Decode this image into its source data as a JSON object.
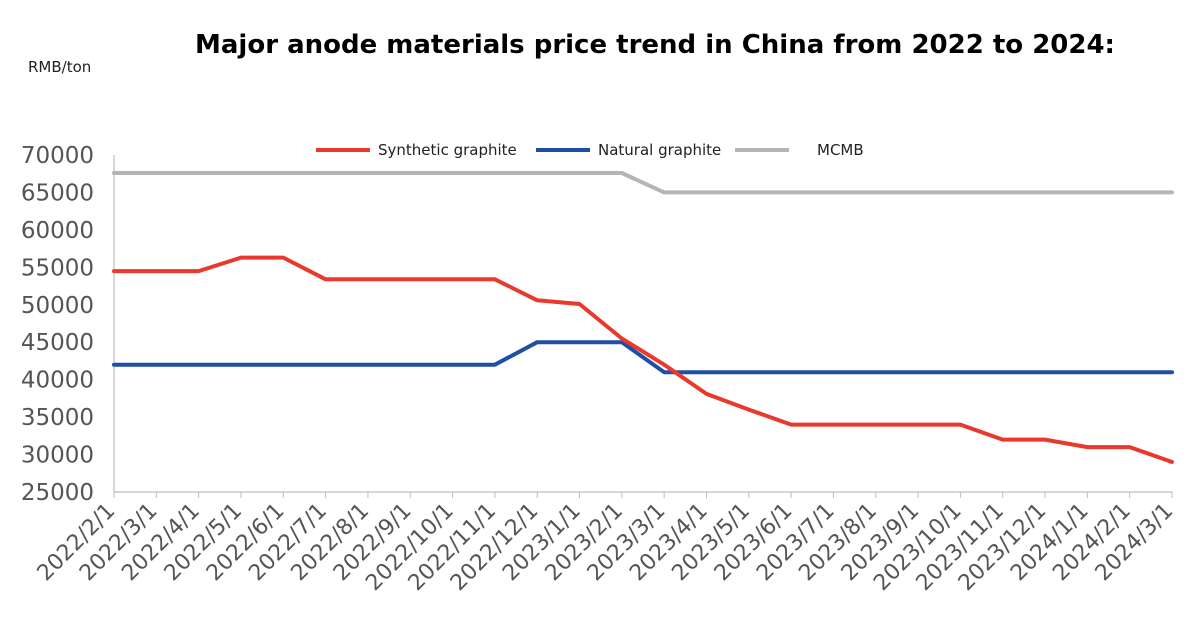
{
  "chart_data": {
    "type": "line",
    "title": "Major anode materials price trend  in China from 2022 to 2024:",
    "ylabel": "RMB/ton",
    "xlabel": "",
    "ylim": [
      25000,
      70000
    ],
    "yticks": [
      70000,
      65000,
      60000,
      55000,
      50000,
      45000,
      40000,
      35000,
      30000,
      25000
    ],
    "categories": [
      "2022/2/1",
      "2022/3/1",
      "2022/4/1",
      "2022/5/1",
      "2022/6/1",
      "2022/7/1",
      "2022/8/1",
      "2022/9/1",
      "2022/10/1",
      "2022/11/1",
      "2022/12/1",
      "2023/1/1",
      "2023/2/1",
      "2023/3/1",
      "2023/4/1",
      "2023/5/1",
      "2023/6/1",
      "2023/7/1",
      "2023/8/1",
      "2023/9/1",
      "2023/10/1",
      "2023/11/1",
      "2023/12/1",
      "2024/1/1",
      "2024/2/1",
      "2024/3/1"
    ],
    "grid": false,
    "legend_position": "top",
    "series": [
      {
        "name": "Synthetic graphite",
        "color": "#e8392c",
        "values": [
          [
            0,
            54500
          ],
          [
            2,
            54500
          ],
          [
            3,
            56300
          ],
          [
            4,
            56300
          ],
          [
            5,
            53400
          ],
          [
            9,
            53400
          ],
          [
            10,
            50600
          ],
          [
            11,
            50100
          ],
          [
            12,
            45500
          ],
          [
            13,
            42000
          ],
          [
            14,
            38100
          ],
          [
            15,
            36000
          ],
          [
            16,
            34000
          ],
          [
            20,
            34000
          ],
          [
            21,
            32000
          ],
          [
            22,
            32000
          ],
          [
            23,
            31000
          ],
          [
            24,
            31000
          ],
          [
            25,
            29000
          ]
        ]
      },
      {
        "name": "Natural graphite",
        "color": "#1f4ea6",
        "values": [
          [
            0,
            42000
          ],
          [
            9,
            42000
          ],
          [
            10,
            45000
          ],
          [
            12,
            45000
          ],
          [
            13,
            41000
          ],
          [
            25,
            41000
          ]
        ]
      },
      {
        "name": "MCMB",
        "color": "#b5b5b5",
        "values": [
          [
            0,
            67600
          ],
          [
            12,
            67600
          ],
          [
            13,
            65000
          ],
          [
            25,
            65000
          ]
        ]
      }
    ]
  }
}
